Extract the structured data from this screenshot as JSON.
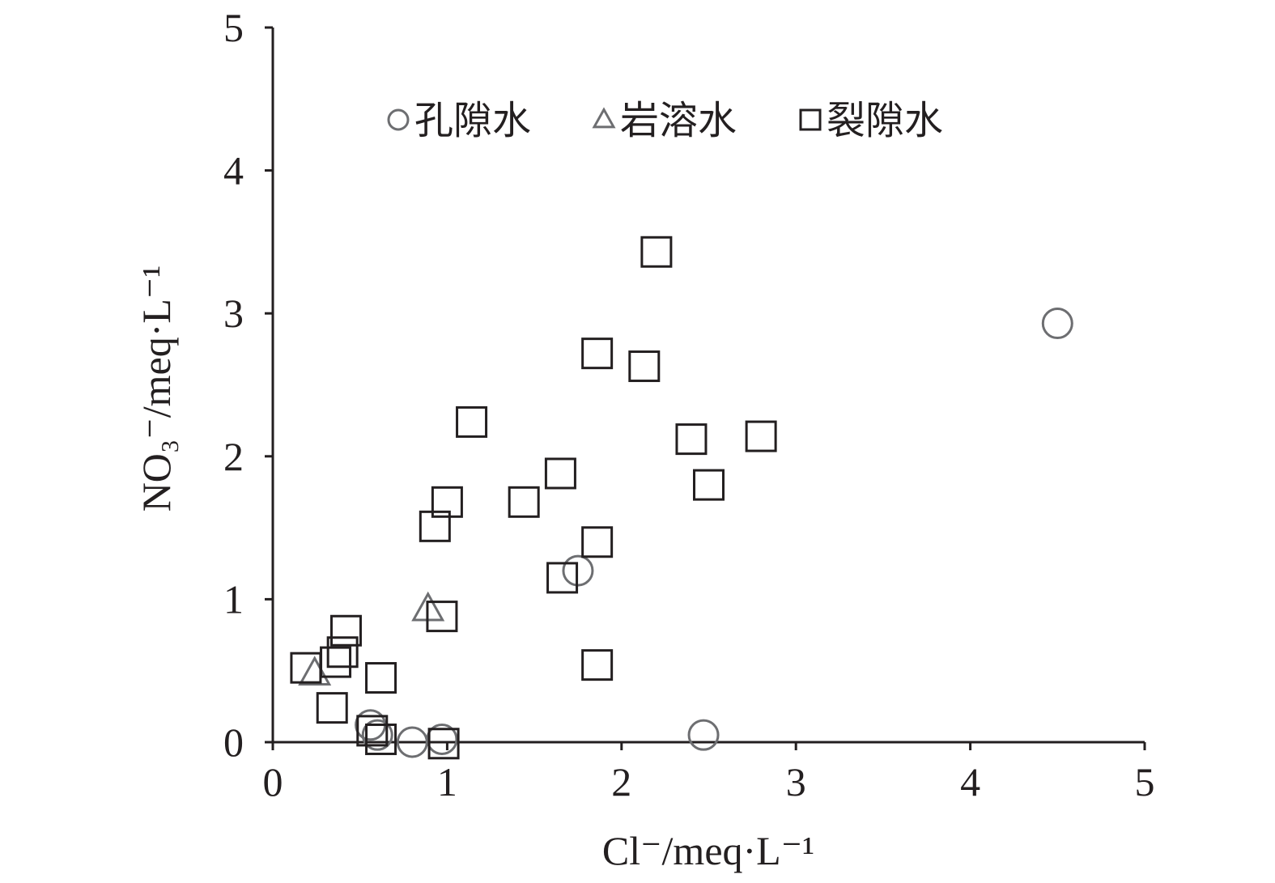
{
  "chart_data": {
    "type": "scatter",
    "xlabel": "Cl⁻/meq·L⁻¹",
    "ylabel": "NO₃⁻/meq·L⁻¹",
    "xlim": [
      0,
      5
    ],
    "ylim": [
      0,
      5
    ],
    "x_ticks": [
      "0",
      "1",
      "2",
      "3",
      "4",
      "5"
    ],
    "y_ticks": [
      "0",
      "1",
      "2",
      "3",
      "4",
      "5"
    ],
    "grid": false,
    "legend_position": "top",
    "series": [
      {
        "name": "孔隙水",
        "marker": "circle",
        "color": "#6d6e71",
        "points": [
          [
            4.5,
            2.93
          ],
          [
            1.75,
            1.2
          ],
          [
            2.47,
            0.05
          ],
          [
            0.56,
            0.12
          ],
          [
            0.8,
            0.0
          ],
          [
            0.97,
            0.02
          ],
          [
            0.6,
            0.05
          ]
        ]
      },
      {
        "name": "岩溶水",
        "marker": "triangle",
        "color": "#6d6e71",
        "points": [
          [
            0.89,
            0.93
          ],
          [
            0.24,
            0.48
          ]
        ]
      },
      {
        "name": "裂隙水",
        "marker": "square",
        "color": "#231f20",
        "points": [
          [
            2.2,
            3.43
          ],
          [
            1.86,
            2.72
          ],
          [
            2.13,
            2.63
          ],
          [
            1.14,
            2.24
          ],
          [
            2.4,
            2.12
          ],
          [
            2.8,
            2.14
          ],
          [
            1.65,
            1.88
          ],
          [
            2.5,
            1.8
          ],
          [
            1.44,
            1.68
          ],
          [
            1.0,
            1.68
          ],
          [
            0.93,
            1.51
          ],
          [
            1.86,
            1.4
          ],
          [
            1.66,
            1.15
          ],
          [
            0.97,
            0.88
          ],
          [
            0.42,
            0.78
          ],
          [
            0.4,
            0.63
          ],
          [
            0.36,
            0.56
          ],
          [
            0.19,
            0.52
          ],
          [
            0.62,
            0.45
          ],
          [
            0.34,
            0.24
          ],
          [
            0.57,
            0.08
          ],
          [
            0.62,
            0.02
          ],
          [
            0.98,
            -0.01
          ],
          [
            1.86,
            0.54
          ]
        ]
      }
    ]
  }
}
